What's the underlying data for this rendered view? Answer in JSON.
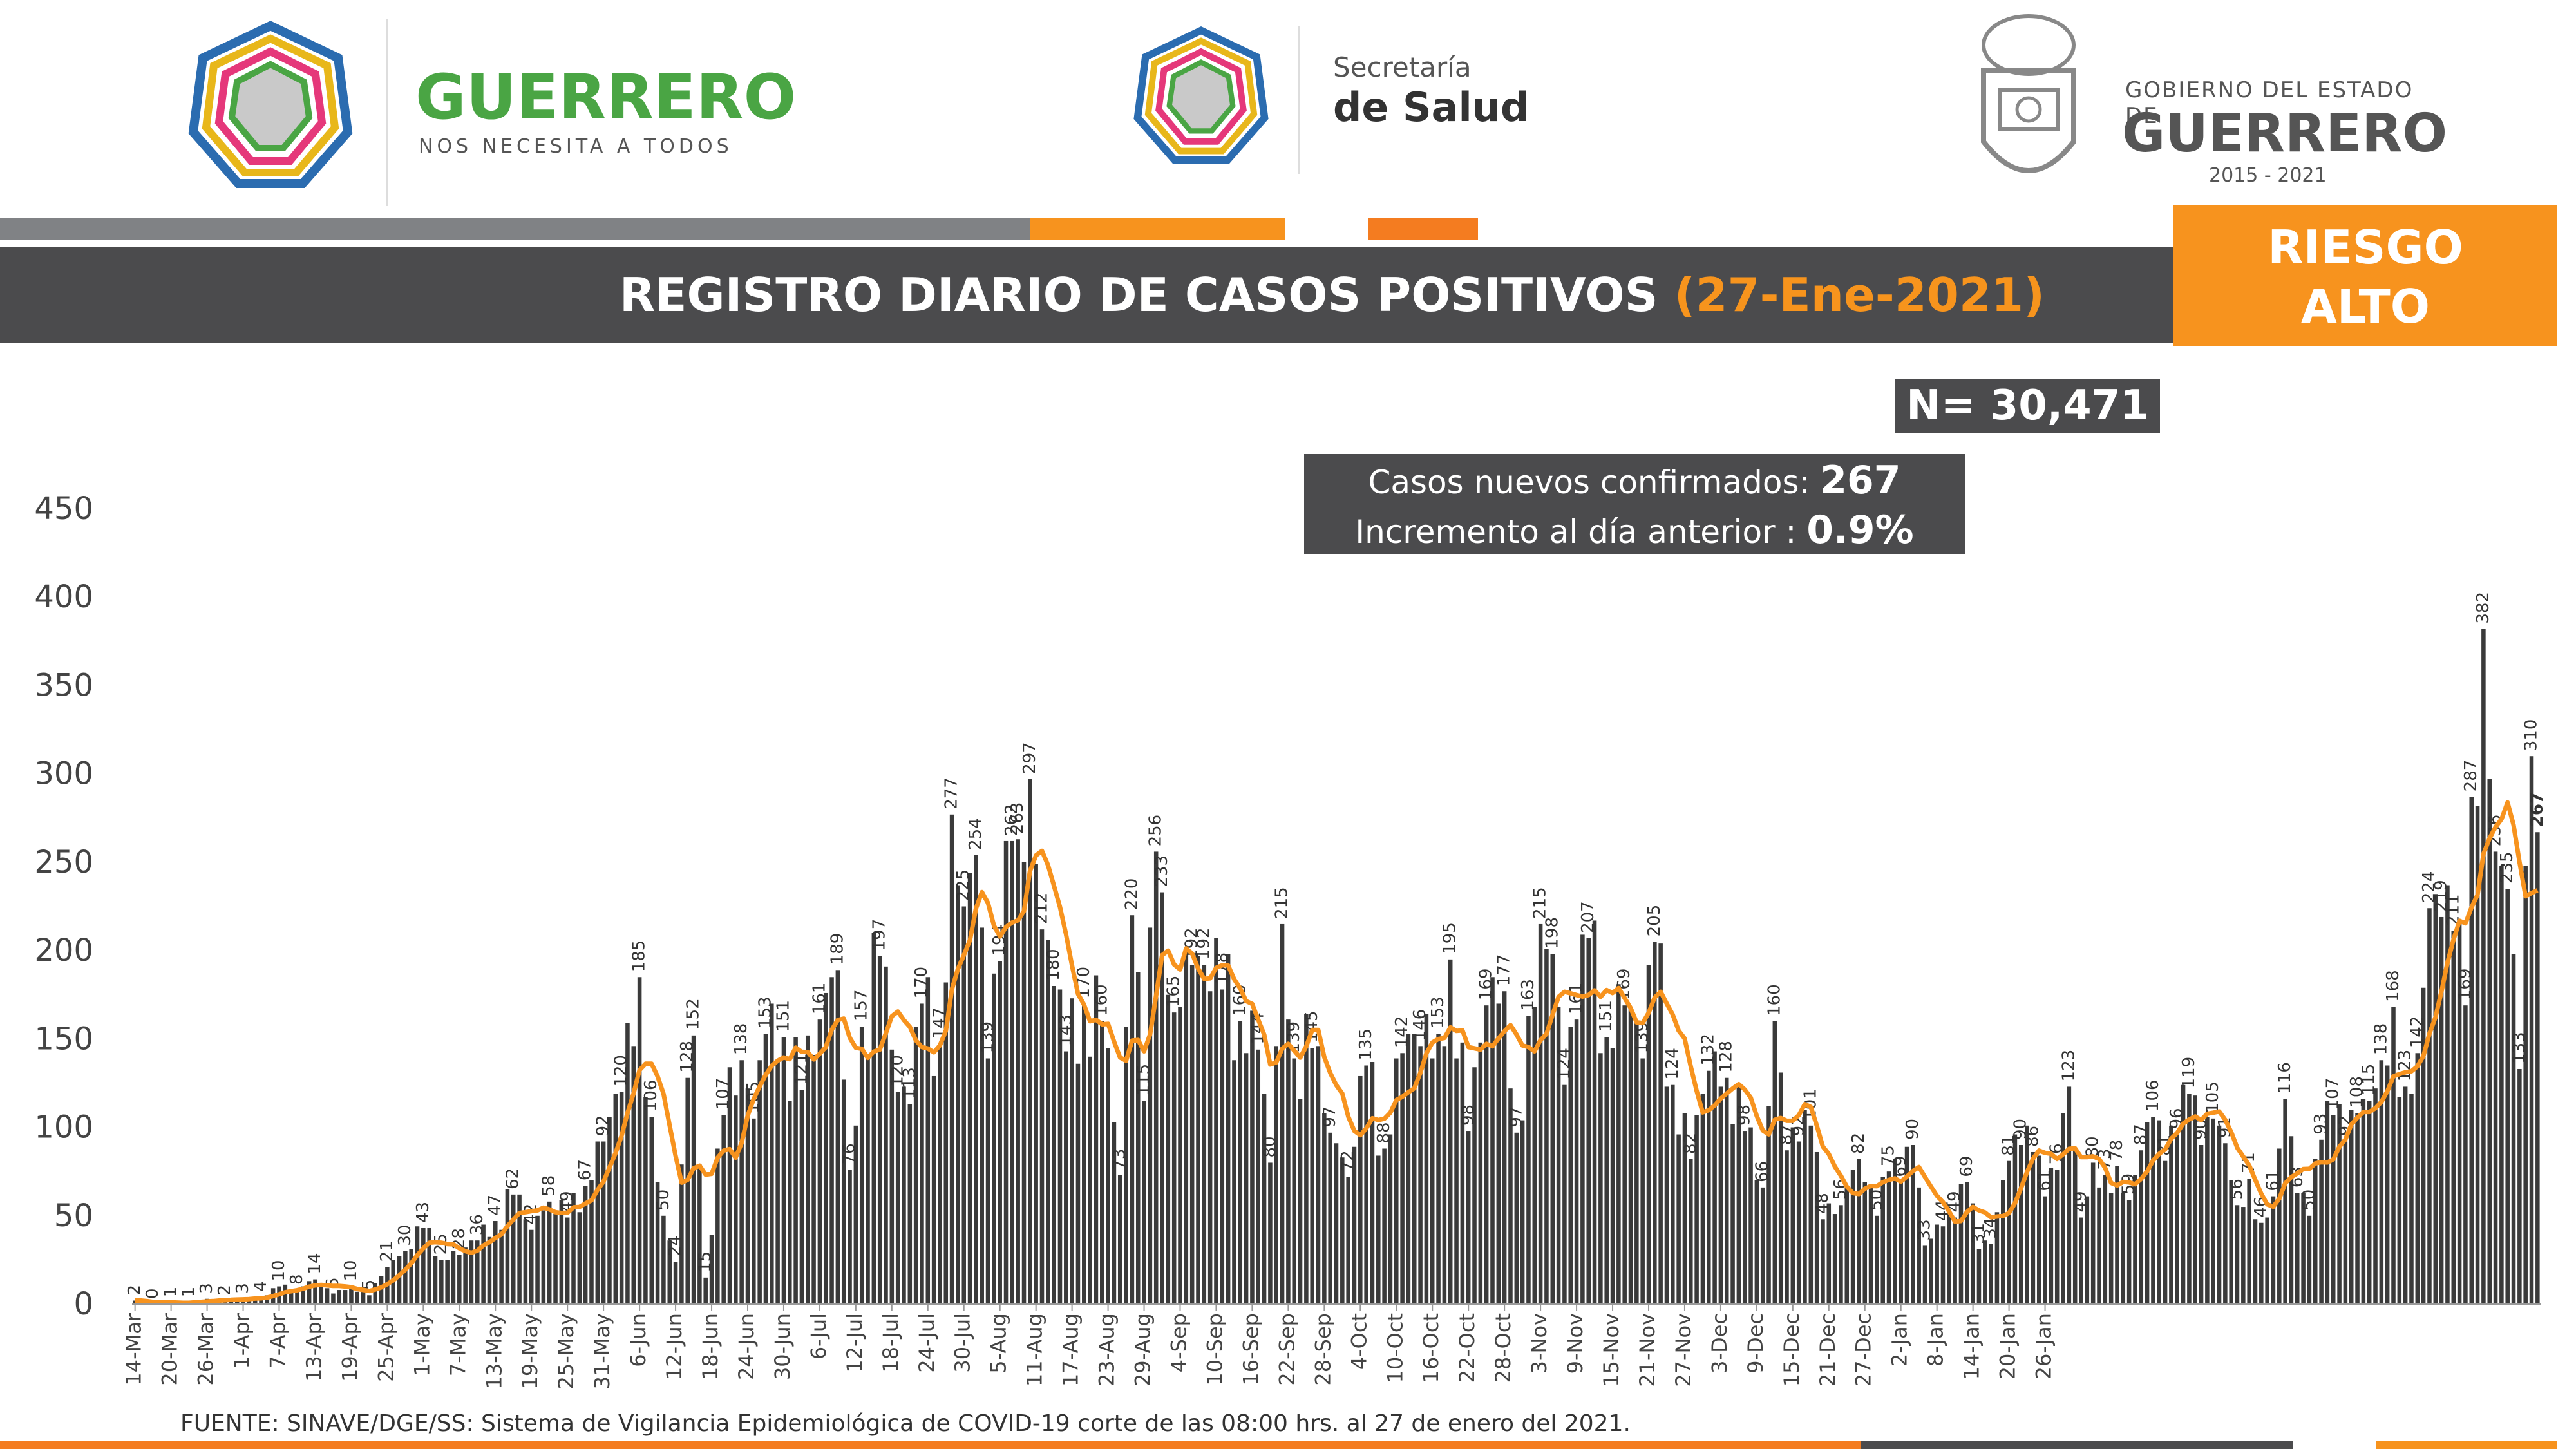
{
  "header": {
    "logo1_title": "GUERRERO",
    "logo1_subtitle": "NOS NECESITA A TODOS",
    "logo2_line1": "Secretaría",
    "logo2_line2": "de Salud",
    "logo3_line1": "GOBIERNO DEL ESTADO DE",
    "logo3_line2": "GUERRERO",
    "logo3_line3": "2015 - 2021"
  },
  "colors": {
    "dark": "#4b4b4d",
    "orange": "#f7931e",
    "gray_band": "#808285",
    "bar": "#3a3a3a"
  },
  "title": {
    "main": "REGISTRO DIARIO DE CASOS POSITIVOS",
    "date": "(27-Ene-2021)"
  },
  "risk": {
    "line1": "RIESGO",
    "line2": "ALTO"
  },
  "total": "N= 30,471",
  "new_cases": {
    "label1": "Casos nuevos confirmados",
    "value1": "267",
    "label2": "Incremento al día anterior",
    "value2": "0.9%"
  },
  "source": "FUENTE: SINAVE/DGE/SS: Sistema de Vigilancia Epidemiológica de COVID-19 corte de las 08:00 hrs. al 27 de enero del 2021.",
  "chart_data": {
    "type": "bar",
    "ylim": [
      0,
      450
    ],
    "y_ticks": [
      "0",
      "50",
      "100",
      "150",
      "200",
      "250",
      "300",
      "350",
      "400",
      "450"
    ],
    "x_tick_labels": [
      "14-Mar",
      "20-Mar",
      "26-Mar",
      "1-Apr",
      "7-Apr",
      "13-Apr",
      "19-Apr",
      "25-Apr",
      "1-May",
      "7-May",
      "13-May",
      "19-May",
      "25-May",
      "31-May",
      "6-Jun",
      "12-Jun",
      "18-Jun",
      "24-Jun",
      "30-Jun",
      "6-Jul",
      "12-Jul",
      "18-Jul",
      "24-Jul",
      "30-Jul",
      "5-Aug",
      "11-Aug",
      "17-Aug",
      "23-Aug",
      "29-Aug",
      "4-Sep",
      "10-Sep",
      "16-Sep",
      "22-Sep",
      "28-Sep",
      "4-Oct",
      "10-Oct",
      "16-Oct",
      "22-Oct",
      "28-Oct",
      "3-Nov",
      "9-Nov",
      "15-Nov",
      "21-Nov",
      "27-Nov",
      "3-Dec",
      "9-Dec",
      "15-Dec",
      "21-Dec",
      "27-Dec",
      "2-Jan",
      "8-Jan",
      "14-Jan",
      "20-Jan",
      "26-Jan"
    ],
    "anchors": [
      [
        0,
        2
      ],
      [
        3,
        0
      ],
      [
        6,
        1
      ],
      [
        9,
        1
      ],
      [
        12,
        3
      ],
      [
        15,
        2
      ],
      [
        18,
        3
      ],
      [
        21,
        4
      ],
      [
        24,
        10
      ],
      [
        27,
        8
      ],
      [
        30,
        14
      ],
      [
        33,
        6
      ],
      [
        36,
        10
      ],
      [
        39,
        5
      ],
      [
        42,
        21
      ],
      [
        45,
        30
      ],
      [
        48,
        43
      ],
      [
        51,
        25
      ],
      [
        54,
        28
      ],
      [
        57,
        36
      ],
      [
        60,
        47
      ],
      [
        63,
        62
      ],
      [
        66,
        42
      ],
      [
        69,
        58
      ],
      [
        72,
        49
      ],
      [
        75,
        67
      ],
      [
        78,
        92
      ],
      [
        81,
        120
      ],
      [
        84,
        185
      ],
      [
        86,
        106
      ],
      [
        88,
        50
      ],
      [
        90,
        24
      ],
      [
        92,
        128
      ],
      [
        93,
        152
      ],
      [
        95,
        15
      ],
      [
        98,
        107
      ],
      [
        101,
        138
      ],
      [
        103,
        105
      ],
      [
        105,
        153
      ],
      [
        108,
        151
      ],
      [
        111,
        121
      ],
      [
        114,
        161
      ],
      [
        117,
        189
      ],
      [
        119,
        76
      ],
      [
        121,
        157
      ],
      [
        124,
        197
      ],
      [
        127,
        120
      ],
      [
        129,
        113
      ],
      [
        131,
        170
      ],
      [
        134,
        147
      ],
      [
        136,
        277
      ],
      [
        138,
        225
      ],
      [
        140,
        254
      ],
      [
        142,
        139
      ],
      [
        144,
        194
      ],
      [
        146,
        262
      ],
      [
        147,
        263
      ],
      [
        149,
        297
      ],
      [
        151,
        212
      ],
      [
        153,
        180
      ],
      [
        155,
        143
      ],
      [
        158,
        170
      ],
      [
        161,
        160
      ],
      [
        164,
        73
      ],
      [
        166,
        220
      ],
      [
        168,
        115
      ],
      [
        170,
        256
      ],
      [
        171,
        233
      ],
      [
        173,
        165
      ],
      [
        176,
        192
      ],
      [
        178,
        192
      ],
      [
        181,
        178
      ],
      [
        184,
        160
      ],
      [
        187,
        144
      ],
      [
        189,
        80
      ],
      [
        191,
        215
      ],
      [
        193,
        139
      ],
      [
        196,
        145
      ],
      [
        199,
        97
      ],
      [
        202,
        72
      ],
      [
        205,
        135
      ],
      [
        208,
        88
      ],
      [
        211,
        142
      ],
      [
        214,
        146
      ],
      [
        217,
        153
      ],
      [
        219,
        195
      ],
      [
        222,
        98
      ],
      [
        225,
        169
      ],
      [
        228,
        177
      ],
      [
        230,
        97
      ],
      [
        232,
        163
      ],
      [
        234,
        215
      ],
      [
        236,
        198
      ],
      [
        238,
        124
      ],
      [
        240,
        161
      ],
      [
        242,
        207
      ],
      [
        245,
        151
      ],
      [
        248,
        169
      ],
      [
        251,
        139
      ],
      [
        253,
        205
      ],
      [
        256,
        124
      ],
      [
        259,
        82
      ],
      [
        262,
        132
      ],
      [
        265,
        128
      ],
      [
        268,
        98
      ],
      [
        271,
        66
      ],
      [
        273,
        160
      ],
      [
        275,
        87
      ],
      [
        277,
        92
      ],
      [
        279,
        101
      ],
      [
        281,
        48
      ],
      [
        284,
        56
      ],
      [
        287,
        82
      ],
      [
        290,
        50
      ],
      [
        292,
        75
      ],
      [
        294,
        69
      ],
      [
        296,
        90
      ],
      [
        298,
        33
      ],
      [
        301,
        44
      ],
      [
        303,
        49
      ],
      [
        305,
        69
      ],
      [
        307,
        31
      ],
      [
        309,
        34
      ],
      [
        312,
        81
      ],
      [
        314,
        90
      ],
      [
        316,
        86
      ],
      [
        318,
        61
      ],
      [
        320,
        76
      ],
      [
        322,
        123
      ],
      [
        324,
        49
      ],
      [
        326,
        80
      ],
      [
        328,
        73
      ],
      [
        330,
        78
      ],
      [
        332,
        59
      ],
      [
        334,
        87
      ],
      [
        336,
        106
      ],
      [
        338,
        81
      ],
      [
        340,
        96
      ],
      [
        342,
        119
      ],
      [
        344,
        90
      ],
      [
        346,
        105
      ],
      [
        348,
        91
      ],
      [
        350,
        56
      ],
      [
        352,
        71
      ],
      [
        354,
        46
      ],
      [
        356,
        61
      ],
      [
        358,
        116
      ],
      [
        360,
        63
      ],
      [
        362,
        50
      ],
      [
        364,
        93
      ],
      [
        366,
        107
      ],
      [
        368,
        92
      ],
      [
        370,
        108
      ],
      [
        372,
        115
      ],
      [
        374,
        138
      ],
      [
        376,
        168
      ],
      [
        378,
        123
      ],
      [
        380,
        142
      ],
      [
        382,
        224
      ],
      [
        384,
        219
      ],
      [
        386,
        211
      ],
      [
        388,
        169
      ],
      [
        389,
        287
      ],
      [
        391,
        382
      ],
      [
        393,
        256
      ],
      [
        395,
        235
      ],
      [
        397,
        133
      ],
      [
        399,
        310
      ],
      [
        400,
        267
      ]
    ],
    "n_days": 401,
    "trend_series_name": ""
  }
}
